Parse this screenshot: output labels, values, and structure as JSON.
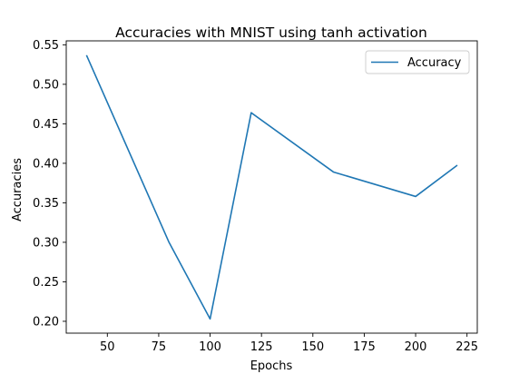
{
  "chart_data": {
    "type": "line",
    "title": "Accuracies with MNIST using tanh activation",
    "xlabel": "Epochs",
    "ylabel": "Accuracies",
    "xlim": [
      30,
      230
    ],
    "ylim": [
      0.185,
      0.555
    ],
    "xticks": [
      50,
      75,
      100,
      125,
      150,
      175,
      200,
      225
    ],
    "xtick_labels": [
      "50",
      "75",
      "100",
      "125",
      "150",
      "175",
      "200",
      "225"
    ],
    "yticks": [
      0.2,
      0.25,
      0.3,
      0.35,
      0.4,
      0.45,
      0.5,
      0.55
    ],
    "ytick_labels": [
      "0.20",
      "0.25",
      "0.30",
      "0.35",
      "0.40",
      "0.45",
      "0.50",
      "0.55"
    ],
    "legend_position": "top-right",
    "grid": false,
    "series": [
      {
        "name": "Accuracy",
        "color": "#1f77b4",
        "x": [
          40,
          80,
          100,
          120,
          160,
          200,
          220
        ],
        "y": [
          0.536,
          0.3,
          0.203,
          0.464,
          0.389,
          0.358,
          0.397
        ]
      }
    ]
  }
}
